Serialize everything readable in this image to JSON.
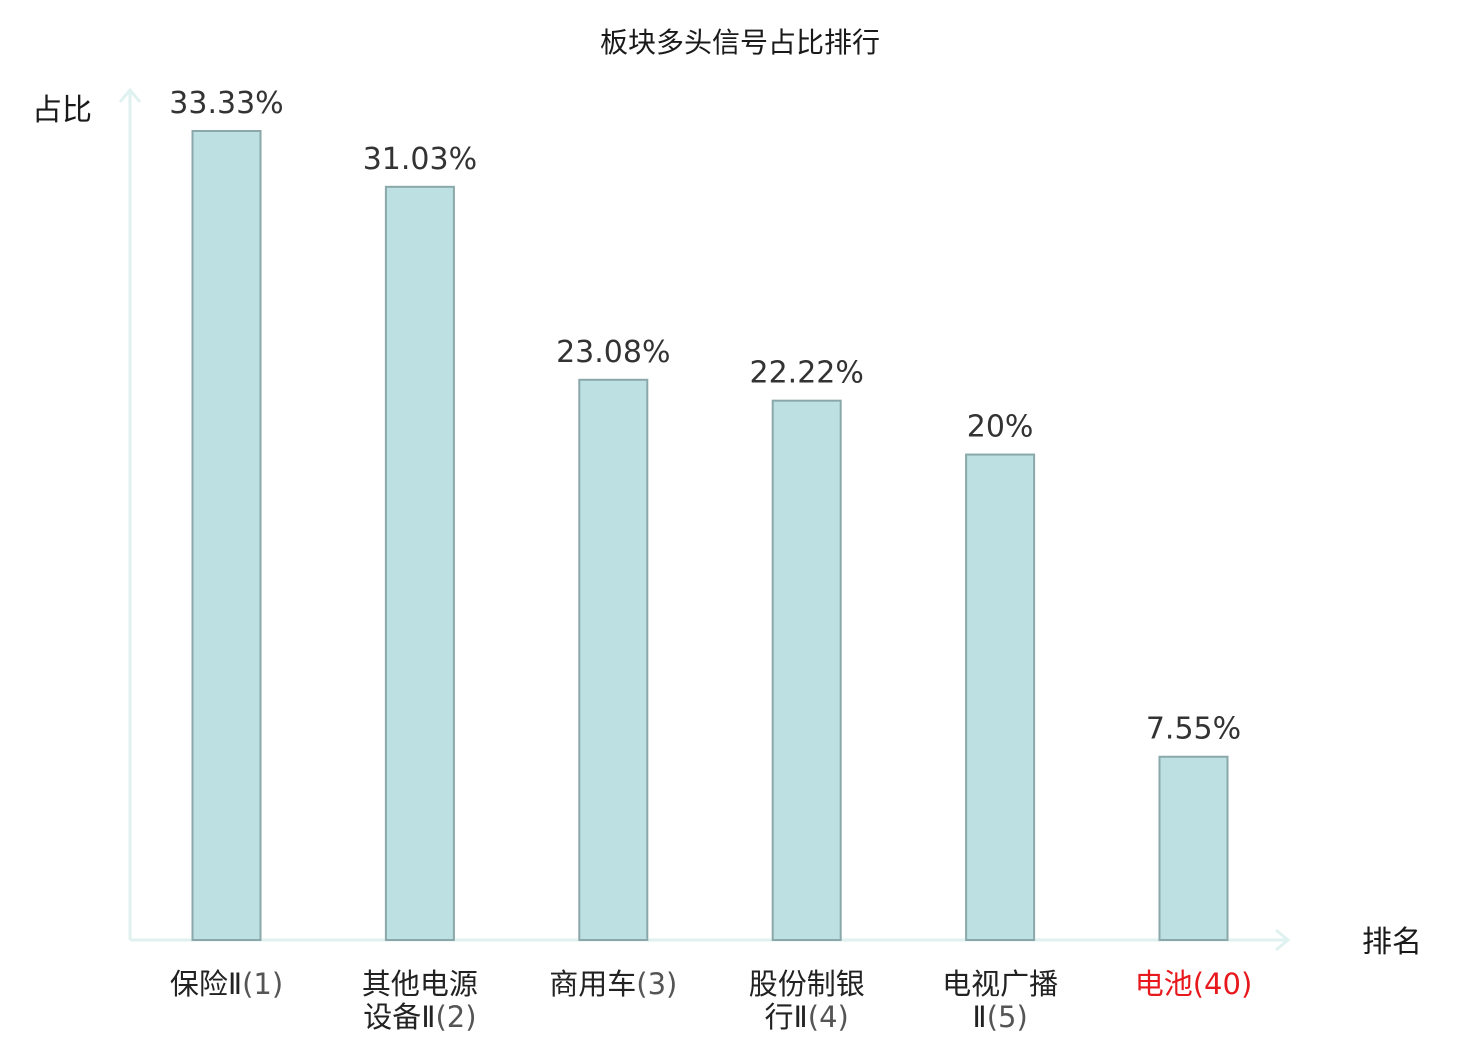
{
  "chart_data": {
    "type": "bar",
    "title": "板块多头信号占比排行",
    "xlabel": "排名",
    "ylabel": "占比",
    "ylim": [
      0,
      35
    ],
    "grid": false,
    "categories": [
      {
        "lines": [
          "保险Ⅱ"
        ],
        "rank": "(1)",
        "highlight": false
      },
      {
        "lines": [
          "其他电源",
          "设备Ⅱ"
        ],
        "rank": "(2)",
        "highlight": false
      },
      {
        "lines": [
          "商用车"
        ],
        "rank": "(3)",
        "highlight": false
      },
      {
        "lines": [
          "股份制银",
          "行Ⅱ"
        ],
        "rank": "(4)",
        "highlight": false
      },
      {
        "lines": [
          "电视广播",
          "Ⅱ"
        ],
        "rank": "(5)",
        "highlight": false
      },
      {
        "lines": [
          "电池"
        ],
        "rank": "(40)",
        "highlight": true
      }
    ],
    "values": [
      33.33,
      31.03,
      23.08,
      22.22,
      20,
      7.55
    ],
    "value_labels": [
      "33.33%",
      "31.03%",
      "23.08%",
      "22.22%",
      "20%",
      "7.55%"
    ],
    "colors": {
      "bar_fill": "#bde0e3",
      "bar_stroke": "#8aa8aa",
      "axis": "#e0f2ef",
      "highlight": "#e8191c"
    }
  }
}
